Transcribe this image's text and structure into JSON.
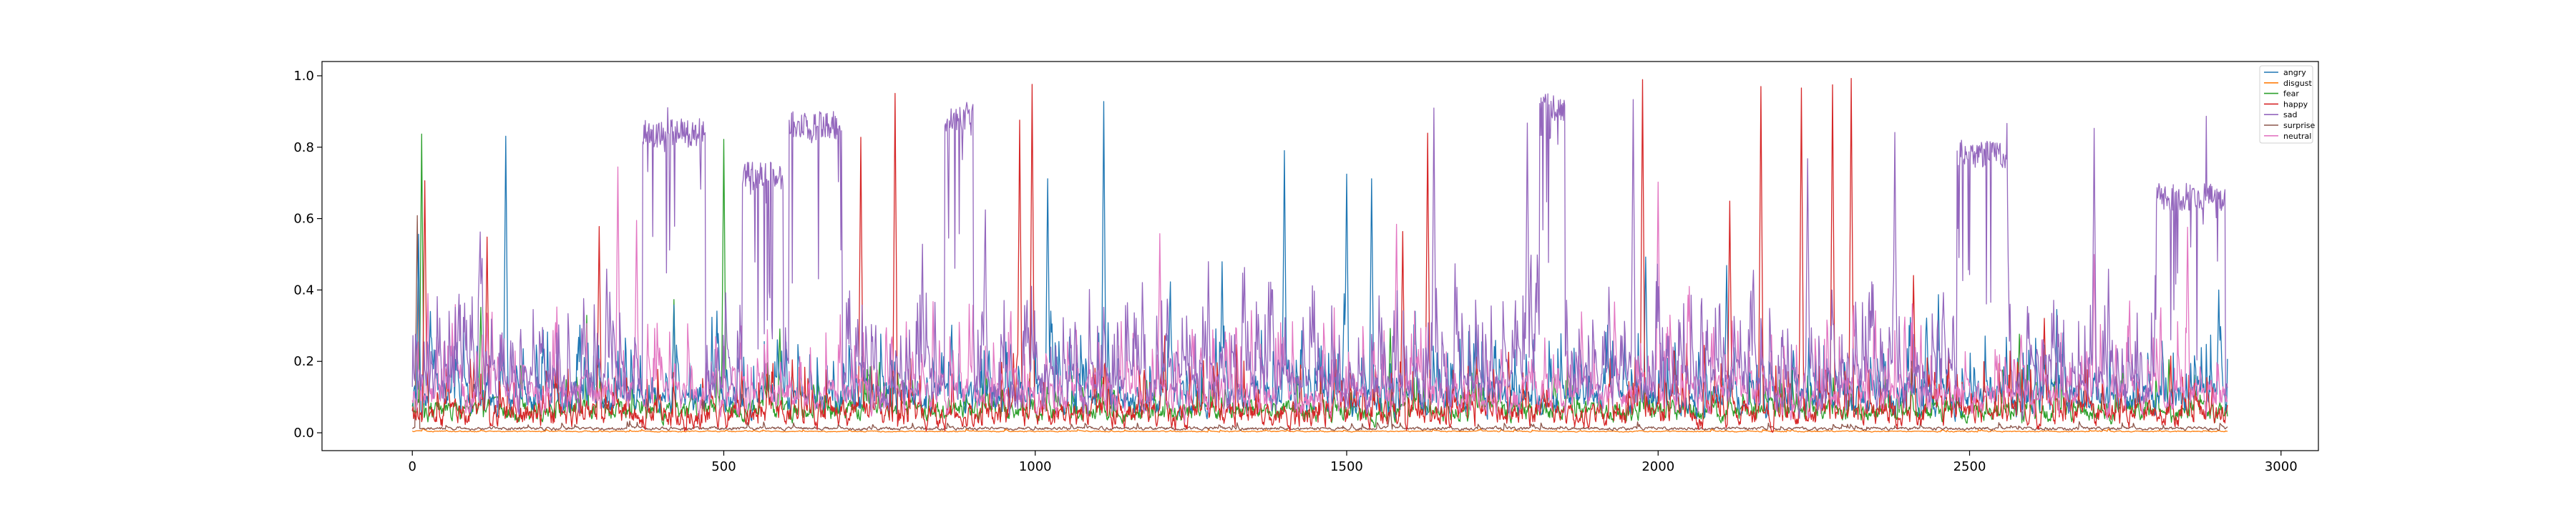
{
  "chart_data": {
    "type": "line",
    "title": "",
    "xlabel": "",
    "ylabel": "",
    "xlim": [
      -145,
      3060
    ],
    "ylim": [
      -0.05,
      1.04
    ],
    "grid": false,
    "legend_placement": "top-right",
    "x_ticks": [
      0,
      500,
      1000,
      1500,
      2000,
      2500,
      3000
    ],
    "x_tick_labels": [
      "0",
      "500",
      "1000",
      "1500",
      "2000",
      "2500",
      "3000"
    ],
    "y_ticks": [
      0.0,
      0.2,
      0.4,
      0.6,
      0.8,
      1.0
    ],
    "y_tick_labels": [
      "0.0",
      "0.2",
      "0.4",
      "0.6",
      "0.8",
      "1.0"
    ],
    "n_frames": 2915,
    "series": [
      {
        "name": "angry",
        "color": "#1f77b4",
        "base": 0.09,
        "amp": 0.33,
        "density": 0.11,
        "peaks": [
          [
            10,
            0.55
          ],
          [
            150,
            0.84
          ],
          [
            420,
            0.35
          ],
          [
            600,
            0.26
          ],
          [
            850,
            0.22
          ],
          [
            1020,
            0.72
          ],
          [
            1110,
            0.92
          ],
          [
            1300,
            0.47
          ],
          [
            1400,
            0.79
          ],
          [
            1500,
            0.73
          ],
          [
            1540,
            0.71
          ],
          [
            1800,
            0.26
          ],
          [
            1980,
            0.5
          ],
          [
            2110,
            0.47
          ],
          [
            2450,
            0.38
          ],
          [
            2640,
            0.34
          ],
          [
            2900,
            0.4
          ]
        ]
      },
      {
        "name": "disgust",
        "color": "#ff7f0e",
        "base": 0.004,
        "amp": 0.012,
        "density": 0.02,
        "peaks": []
      },
      {
        "name": "fear",
        "color": "#2ca02c",
        "base": 0.06,
        "amp": 0.22,
        "density": 0.05,
        "peaks": [
          [
            15,
            0.84
          ],
          [
            110,
            0.36
          ],
          [
            280,
            0.32
          ],
          [
            420,
            0.37
          ],
          [
            500,
            0.82
          ],
          [
            590,
            0.3
          ],
          [
            750,
            0.2
          ],
          [
            1420,
            0.15
          ],
          [
            1570,
            0.3
          ],
          [
            2240,
            0.15
          ],
          [
            2580,
            0.27
          ],
          [
            2820,
            0.21
          ]
        ]
      },
      {
        "name": "happy",
        "color": "#d62728",
        "base": 0.05,
        "amp": 0.28,
        "density": 0.08,
        "peaks": [
          [
            20,
            0.71
          ],
          [
            120,
            0.55
          ],
          [
            300,
            0.58
          ],
          [
            720,
            0.82
          ],
          [
            775,
            0.95
          ],
          [
            975,
            0.87
          ],
          [
            995,
            0.97
          ],
          [
            1590,
            0.56
          ],
          [
            1630,
            0.83
          ],
          [
            1975,
            0.99
          ],
          [
            2115,
            0.64
          ],
          [
            2165,
            0.97
          ],
          [
            2230,
            0.96
          ],
          [
            2280,
            0.98
          ],
          [
            2310,
            0.99
          ],
          [
            2410,
            0.45
          ],
          [
            2620,
            0.33
          ]
        ]
      },
      {
        "name": "sad",
        "color": "#9467bd",
        "base": 0.12,
        "amp": 0.45,
        "density": 0.16,
        "plateaus": [
          [
            370,
            470,
            0.84
          ],
          [
            530,
            595,
            0.72
          ],
          [
            605,
            690,
            0.86
          ],
          [
            855,
            900,
            0.88
          ],
          [
            1810,
            1850,
            0.91
          ],
          [
            2480,
            2560,
            0.78
          ],
          [
            2800,
            2910,
            0.66
          ]
        ],
        "peaks": [
          [
            410,
            0.91
          ],
          [
            625,
            0.89
          ],
          [
            660,
            0.89
          ],
          [
            890,
            0.92
          ],
          [
            1640,
            0.9
          ],
          [
            1790,
            0.86
          ],
          [
            1840,
            0.93
          ],
          [
            1960,
            0.93
          ],
          [
            2240,
            0.76
          ],
          [
            2380,
            0.84
          ],
          [
            2560,
            0.86
          ],
          [
            2700,
            0.85
          ],
          [
            2880,
            0.88
          ]
        ]
      },
      {
        "name": "surprise",
        "color": "#8c564b",
        "base": 0.012,
        "amp": 0.035,
        "density": 0.02,
        "peaks": [
          [
            8,
            0.6
          ],
          [
            1570,
            0.07
          ]
        ]
      },
      {
        "name": "neutral",
        "color": "#e377c2",
        "base": 0.1,
        "amp": 0.38,
        "density": 0.12,
        "peaks": [
          [
            25,
            0.4
          ],
          [
            330,
            0.75
          ],
          [
            360,
            0.6
          ],
          [
            900,
            0.35
          ],
          [
            1200,
            0.55
          ],
          [
            1580,
            0.58
          ],
          [
            2000,
            0.7
          ],
          [
            2050,
            0.4
          ],
          [
            2700,
            0.5
          ],
          [
            2850,
            0.57
          ]
        ]
      }
    ]
  }
}
